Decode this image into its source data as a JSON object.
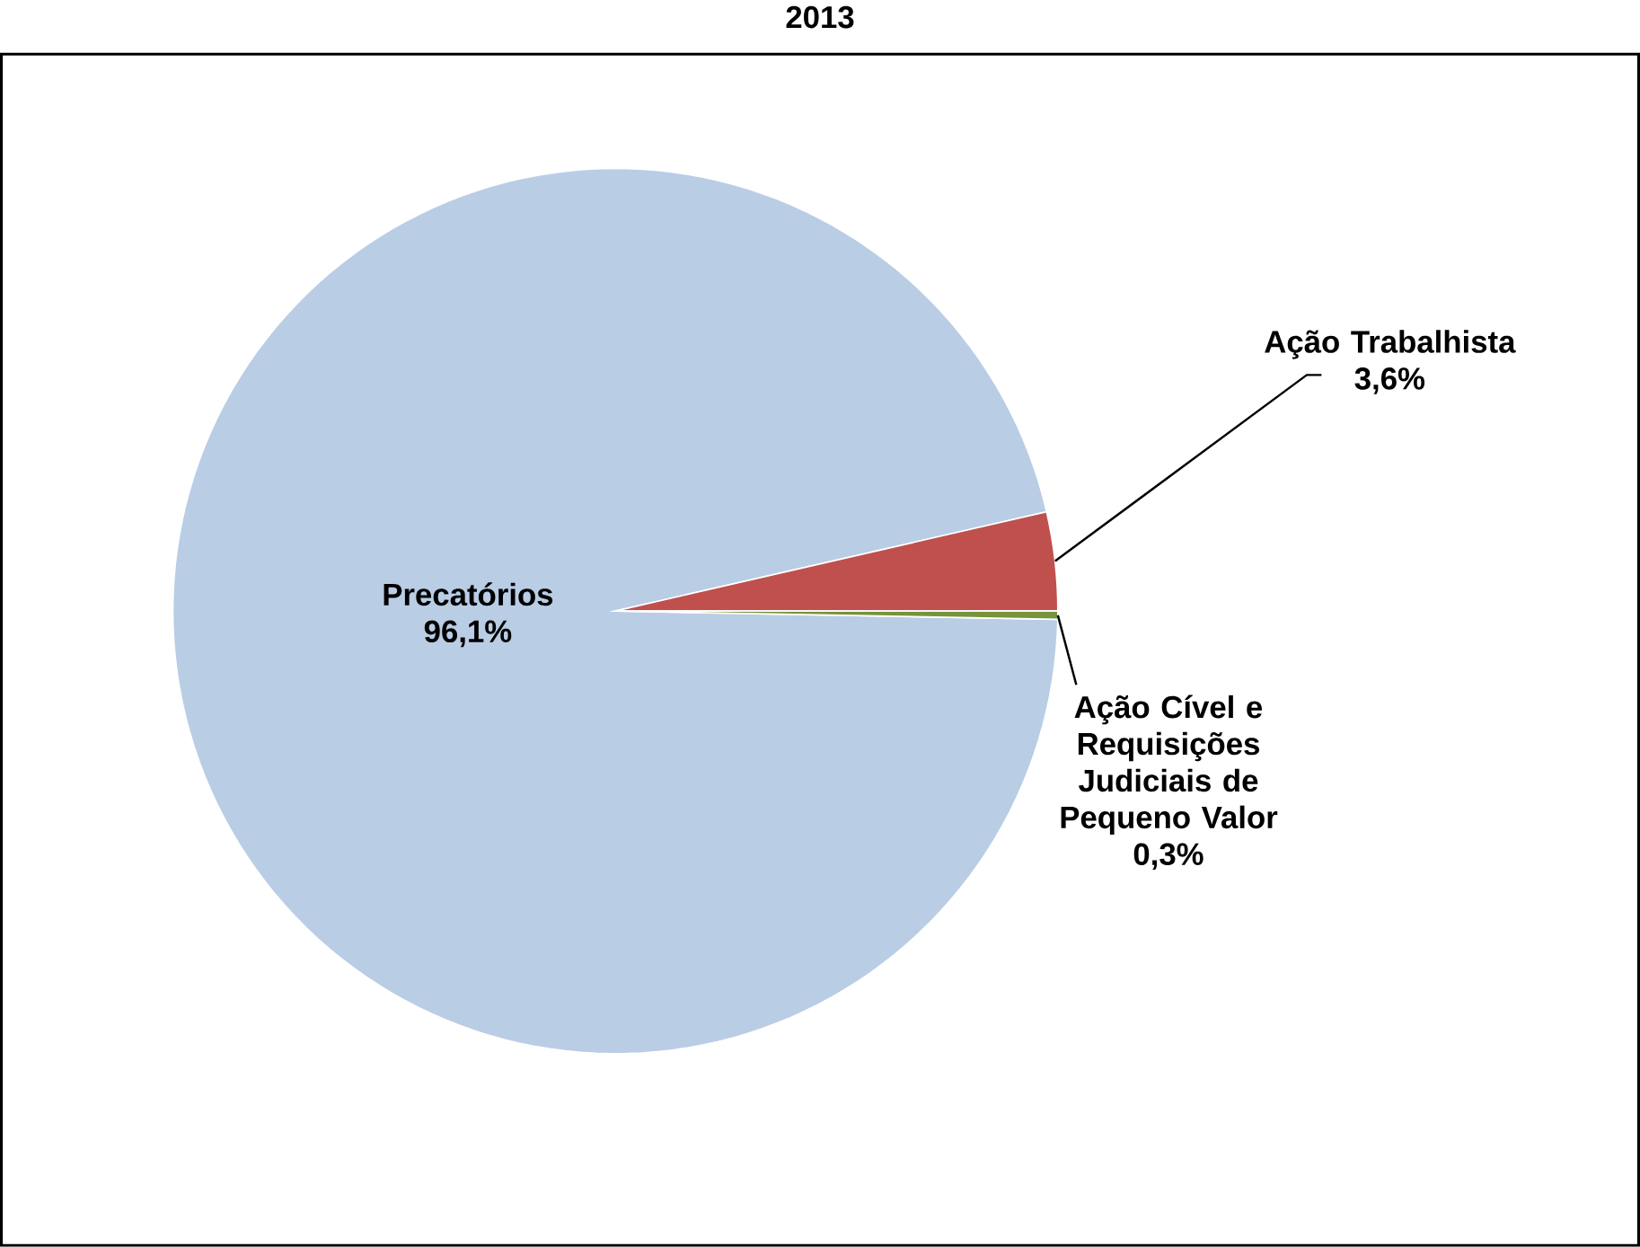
{
  "chart_data": {
    "type": "pie",
    "title": "2013",
    "categories": [
      "Precatórios",
      "Ação Trabalhista",
      "Ação Cível e Requisições Judiciais de Pequeno Valor"
    ],
    "values": [
      96.1,
      3.6,
      0.3
    ],
    "value_labels": [
      "96,1%",
      "3,6%",
      "0,3%"
    ],
    "colors": [
      "#b9cde5",
      "#c0504d",
      "#77933c"
    ]
  }
}
